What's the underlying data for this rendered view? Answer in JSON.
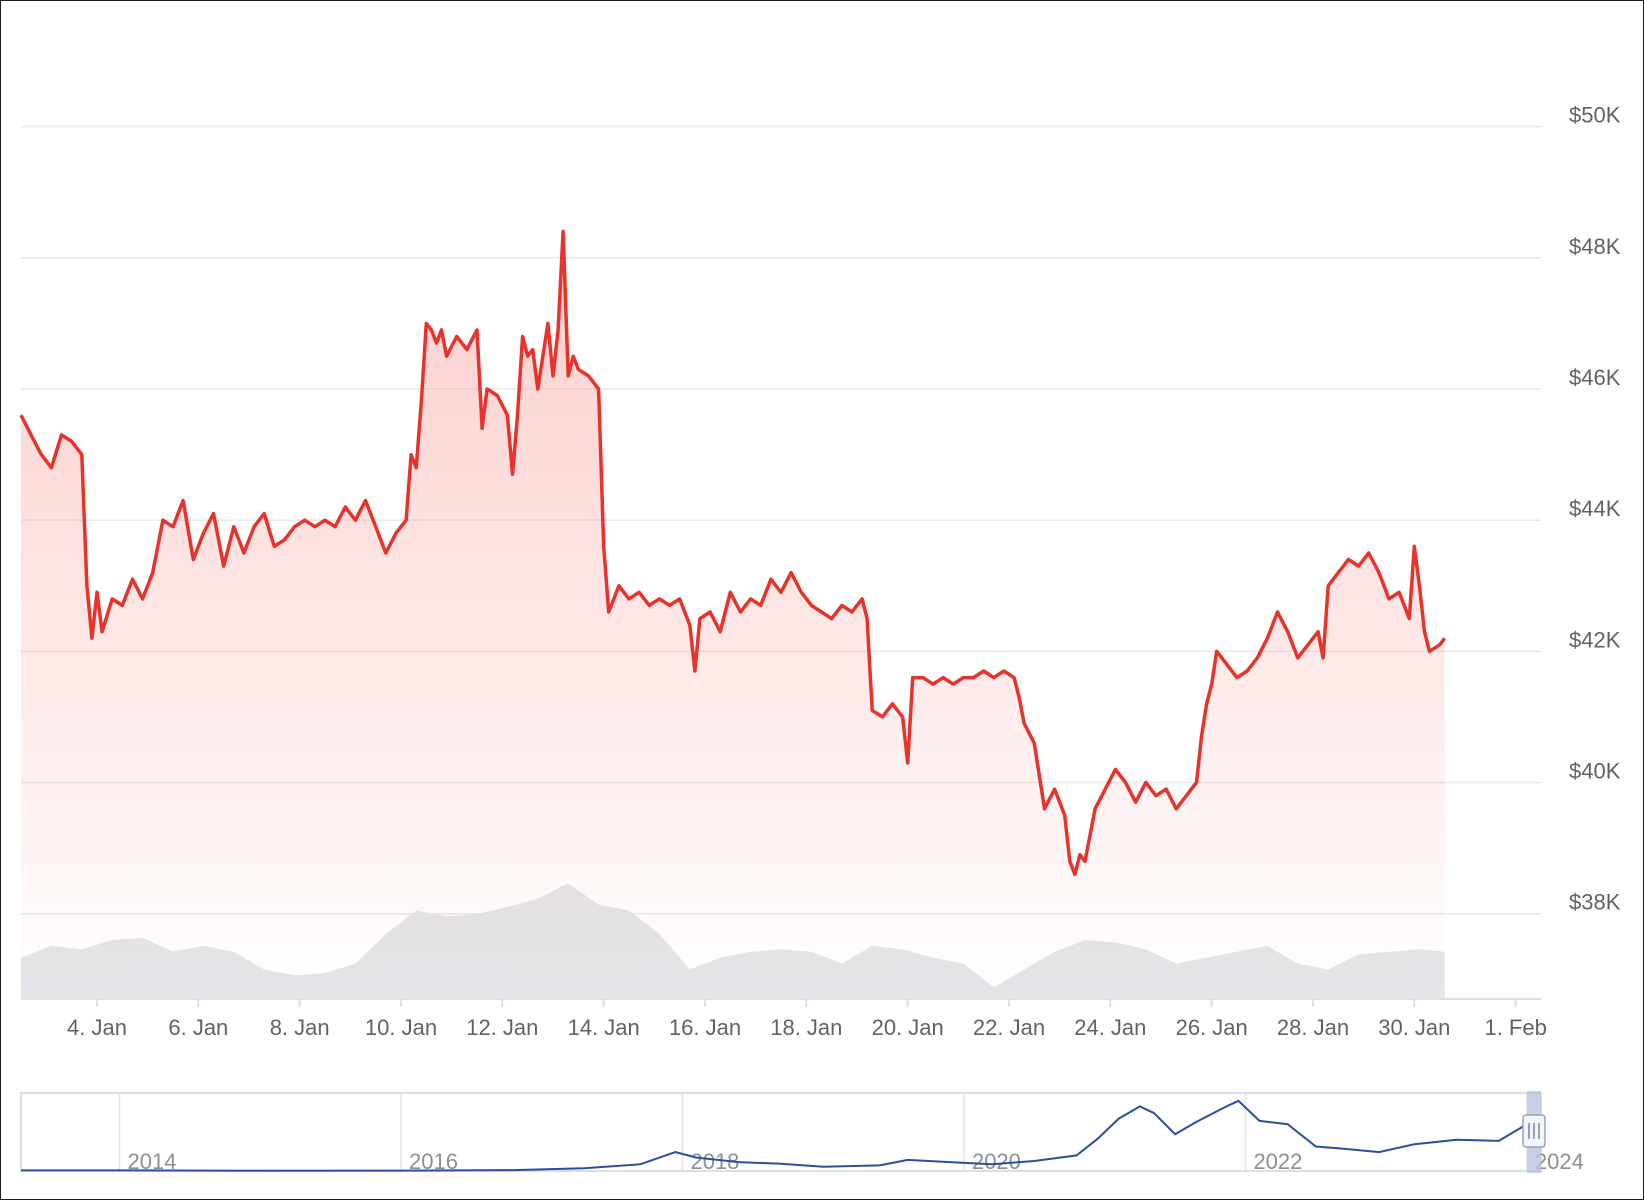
{
  "colors": {
    "price_line": "#e8332c",
    "price_area_top": "#f9a6a2",
    "volume": "#e3e5e8",
    "grid": "#e6e8eb",
    "navigator_line": "#2b4e9e",
    "navigator_handle": "#b9c4de"
  },
  "chart_data": {
    "type": "line",
    "series": [
      {
        "values": [
          [
            2.0,
            45.6
          ],
          [
            2.1,
            45.3
          ],
          [
            2.2,
            45.0
          ],
          [
            2.3,
            44.8
          ],
          [
            2.4,
            45.3
          ],
          [
            2.5,
            45.2
          ],
          [
            2.6,
            45.0
          ],
          [
            2.65,
            43.0
          ],
          [
            2.7,
            42.2
          ],
          [
            2.75,
            42.9
          ],
          [
            2.8,
            42.3
          ],
          [
            2.9,
            42.8
          ],
          [
            3.0,
            42.7
          ],
          [
            3.1,
            43.1
          ],
          [
            3.2,
            42.8
          ],
          [
            3.3,
            43.2
          ],
          [
            3.4,
            44.0
          ],
          [
            3.5,
            43.9
          ],
          [
            3.6,
            44.3
          ],
          [
            3.7,
            43.4
          ],
          [
            3.8,
            43.8
          ],
          [
            3.9,
            44.1
          ],
          [
            4.0,
            43.3
          ],
          [
            4.1,
            43.9
          ],
          [
            4.2,
            43.5
          ],
          [
            4.3,
            43.9
          ],
          [
            4.4,
            44.1
          ],
          [
            4.5,
            43.6
          ],
          [
            4.6,
            43.7
          ],
          [
            4.7,
            43.9
          ],
          [
            4.8,
            44.0
          ],
          [
            4.9,
            43.9
          ],
          [
            5.0,
            44.0
          ],
          [
            5.1,
            43.9
          ],
          [
            5.2,
            44.2
          ],
          [
            5.3,
            44.0
          ],
          [
            5.4,
            44.3
          ],
          [
            5.5,
            43.9
          ],
          [
            5.6,
            43.5
          ],
          [
            5.7,
            43.8
          ],
          [
            5.8,
            44.0
          ],
          [
            5.85,
            45.0
          ],
          [
            5.9,
            44.8
          ],
          [
            5.95,
            45.8
          ],
          [
            6.0,
            47.0
          ],
          [
            6.05,
            46.9
          ],
          [
            6.1,
            46.7
          ],
          [
            6.15,
            46.9
          ],
          [
            6.2,
            46.5
          ],
          [
            6.3,
            46.8
          ],
          [
            6.4,
            46.6
          ],
          [
            6.5,
            46.9
          ],
          [
            6.55,
            45.4
          ],
          [
            6.6,
            46.0
          ],
          [
            6.7,
            45.9
          ],
          [
            6.8,
            45.6
          ],
          [
            6.85,
            44.7
          ],
          [
            6.9,
            45.6
          ],
          [
            6.95,
            46.8
          ],
          [
            7.0,
            46.5
          ],
          [
            7.05,
            46.6
          ],
          [
            7.1,
            46.0
          ],
          [
            7.2,
            47.0
          ],
          [
            7.25,
            46.2
          ],
          [
            7.3,
            46.9
          ],
          [
            7.35,
            48.4
          ],
          [
            7.4,
            46.2
          ],
          [
            7.45,
            46.5
          ],
          [
            7.5,
            46.3
          ],
          [
            7.6,
            46.2
          ],
          [
            7.7,
            46.0
          ],
          [
            7.75,
            43.6
          ],
          [
            7.8,
            42.6
          ],
          [
            7.9,
            43.0
          ],
          [
            8.0,
            42.8
          ],
          [
            8.1,
            42.9
          ],
          [
            8.2,
            42.7
          ],
          [
            8.3,
            42.8
          ],
          [
            8.4,
            42.7
          ],
          [
            8.5,
            42.8
          ],
          [
            8.6,
            42.4
          ],
          [
            8.65,
            41.7
          ],
          [
            8.7,
            42.5
          ],
          [
            8.8,
            42.6
          ],
          [
            8.9,
            42.3
          ],
          [
            9.0,
            42.9
          ],
          [
            9.1,
            42.6
          ],
          [
            9.2,
            42.8
          ],
          [
            9.3,
            42.7
          ],
          [
            9.4,
            43.1
          ],
          [
            9.5,
            42.9
          ],
          [
            9.6,
            43.2
          ],
          [
            9.7,
            42.9
          ],
          [
            9.8,
            42.7
          ],
          [
            9.9,
            42.6
          ],
          [
            10.0,
            42.5
          ],
          [
            10.1,
            42.7
          ],
          [
            10.2,
            42.6
          ],
          [
            10.3,
            42.8
          ],
          [
            10.35,
            42.5
          ],
          [
            10.4,
            41.1
          ],
          [
            10.5,
            41.0
          ],
          [
            10.6,
            41.2
          ],
          [
            10.7,
            41.0
          ],
          [
            10.75,
            40.3
          ],
          [
            10.8,
            41.6
          ],
          [
            10.9,
            41.6
          ],
          [
            11.0,
            41.5
          ],
          [
            11.1,
            41.6
          ],
          [
            11.2,
            41.5
          ],
          [
            11.3,
            41.6
          ],
          [
            11.4,
            41.6
          ],
          [
            11.5,
            41.7
          ],
          [
            11.6,
            41.6
          ],
          [
            11.7,
            41.7
          ],
          [
            11.8,
            41.6
          ],
          [
            11.85,
            41.3
          ],
          [
            11.9,
            40.9
          ],
          [
            12.0,
            40.6
          ],
          [
            12.05,
            40.1
          ],
          [
            12.1,
            39.6
          ],
          [
            12.2,
            39.9
          ],
          [
            12.3,
            39.5
          ],
          [
            12.35,
            38.8
          ],
          [
            12.4,
            38.6
          ],
          [
            12.45,
            38.9
          ],
          [
            12.5,
            38.8
          ],
          [
            12.6,
            39.6
          ],
          [
            12.7,
            39.9
          ],
          [
            12.8,
            40.2
          ],
          [
            12.9,
            40.0
          ],
          [
            13.0,
            39.7
          ],
          [
            13.1,
            40.0
          ],
          [
            13.2,
            39.8
          ],
          [
            13.3,
            39.9
          ],
          [
            13.4,
            39.6
          ],
          [
            13.5,
            39.8
          ],
          [
            13.6,
            40.0
          ],
          [
            13.65,
            40.7
          ],
          [
            13.7,
            41.2
          ],
          [
            13.75,
            41.5
          ],
          [
            13.8,
            42.0
          ],
          [
            13.9,
            41.8
          ],
          [
            14.0,
            41.6
          ],
          [
            14.1,
            41.7
          ],
          [
            14.2,
            41.9
          ],
          [
            14.3,
            42.2
          ],
          [
            14.4,
            42.6
          ],
          [
            14.5,
            42.3
          ],
          [
            14.6,
            41.9
          ],
          [
            14.7,
            42.1
          ],
          [
            14.8,
            42.3
          ],
          [
            14.85,
            41.9
          ],
          [
            14.9,
            43.0
          ],
          [
            15.0,
            43.2
          ],
          [
            15.1,
            43.4
          ],
          [
            15.2,
            43.3
          ],
          [
            15.3,
            43.5
          ],
          [
            15.4,
            43.2
          ],
          [
            15.5,
            42.8
          ],
          [
            15.6,
            42.9
          ],
          [
            15.7,
            42.5
          ],
          [
            15.75,
            43.6
          ],
          [
            15.8,
            43.0
          ],
          [
            15.85,
            42.3
          ],
          [
            15.9,
            42.0
          ],
          [
            16.0,
            42.1
          ],
          [
            16.05,
            42.2
          ]
        ]
      }
    ],
    "x_tick_labels": [
      "4. Jan",
      "6. Jan",
      "8. Jan",
      "10. Jan",
      "12. Jan",
      "14. Jan",
      "16. Jan",
      "18. Jan",
      "20. Jan",
      "22. Jan",
      "24. Jan",
      "26. Jan",
      "28. Jan",
      "30. Jan",
      "1. Feb"
    ],
    "x_ticks": [
      2.75,
      3.75,
      4.75,
      5.75,
      6.75,
      7.75,
      8.75,
      9.75,
      10.75,
      11.75,
      12.75,
      13.75,
      14.75,
      15.75,
      16.75
    ],
    "y_tick_labels": [
      "$38K",
      "$40K",
      "$42K",
      "$44K",
      "$46K",
      "$48K",
      "$50K"
    ],
    "y_ticks": [
      38,
      40,
      42,
      44,
      46,
      48,
      50
    ],
    "ylim": [
      36.7,
      51.0
    ],
    "xlim": [
      2.0,
      17.0
    ],
    "grid": true,
    "volume_series": {
      "values": [
        [
          2.0,
          0.35
        ],
        [
          2.3,
          0.45
        ],
        [
          2.6,
          0.42
        ],
        [
          2.9,
          0.5
        ],
        [
          3.2,
          0.52
        ],
        [
          3.5,
          0.4
        ],
        [
          3.8,
          0.45
        ],
        [
          4.1,
          0.4
        ],
        [
          4.4,
          0.25
        ],
        [
          4.7,
          0.2
        ],
        [
          5.0,
          0.22
        ],
        [
          5.3,
          0.3
        ],
        [
          5.6,
          0.55
        ],
        [
          5.9,
          0.75
        ],
        [
          6.2,
          0.7
        ],
        [
          6.5,
          0.72
        ],
        [
          6.8,
          0.78
        ],
        [
          7.1,
          0.85
        ],
        [
          7.4,
          0.98
        ],
        [
          7.7,
          0.8
        ],
        [
          8.0,
          0.75
        ],
        [
          8.3,
          0.55
        ],
        [
          8.6,
          0.25
        ],
        [
          8.9,
          0.35
        ],
        [
          9.2,
          0.4
        ],
        [
          9.5,
          0.42
        ],
        [
          9.8,
          0.4
        ],
        [
          10.1,
          0.3
        ],
        [
          10.4,
          0.45
        ],
        [
          10.7,
          0.42
        ],
        [
          11.0,
          0.35
        ],
        [
          11.3,
          0.3
        ],
        [
          11.6,
          0.1
        ],
        [
          11.9,
          0.25
        ],
        [
          12.2,
          0.4
        ],
        [
          12.5,
          0.5
        ],
        [
          12.8,
          0.48
        ],
        [
          13.1,
          0.42
        ],
        [
          13.4,
          0.3
        ],
        [
          13.7,
          0.35
        ],
        [
          14.0,
          0.4
        ],
        [
          14.3,
          0.45
        ],
        [
          14.6,
          0.3
        ],
        [
          14.9,
          0.25
        ],
        [
          15.2,
          0.38
        ],
        [
          15.5,
          0.4
        ],
        [
          15.8,
          0.42
        ],
        [
          16.05,
          0.4
        ]
      ]
    },
    "navigator": {
      "tick_labels": [
        "2014",
        "2016",
        "2018",
        "2020",
        "2022",
        "2024"
      ],
      "tick_years": [
        2014,
        2016,
        2018,
        2020,
        2022,
        2024
      ],
      "xlim": [
        2013.3,
        2024.1
      ],
      "ylim": [
        0,
        70
      ],
      "values": [
        [
          2013.3,
          0.5
        ],
        [
          2014.0,
          0.5
        ],
        [
          2015.0,
          0.3
        ],
        [
          2016.0,
          0.4
        ],
        [
          2016.8,
          0.8
        ],
        [
          2017.3,
          2.5
        ],
        [
          2017.7,
          6
        ],
        [
          2017.95,
          17
        ],
        [
          2018.1,
          12
        ],
        [
          2018.4,
          8
        ],
        [
          2018.7,
          6.5
        ],
        [
          2019.0,
          3.8
        ],
        [
          2019.4,
          5
        ],
        [
          2019.6,
          10
        ],
        [
          2019.9,
          8
        ],
        [
          2020.2,
          6
        ],
        [
          2020.5,
          9
        ],
        [
          2020.8,
          14
        ],
        [
          2020.95,
          29
        ],
        [
          2021.1,
          47
        ],
        [
          2021.25,
          58
        ],
        [
          2021.35,
          52
        ],
        [
          2021.5,
          33
        ],
        [
          2021.65,
          44
        ],
        [
          2021.85,
          57
        ],
        [
          2021.95,
          63
        ],
        [
          2022.1,
          45
        ],
        [
          2022.3,
          42
        ],
        [
          2022.5,
          22
        ],
        [
          2022.7,
          20
        ],
        [
          2022.95,
          17
        ],
        [
          2023.2,
          24
        ],
        [
          2023.5,
          28
        ],
        [
          2023.8,
          27
        ],
        [
          2024.0,
          42
        ],
        [
          2024.08,
          45
        ]
      ]
    }
  }
}
